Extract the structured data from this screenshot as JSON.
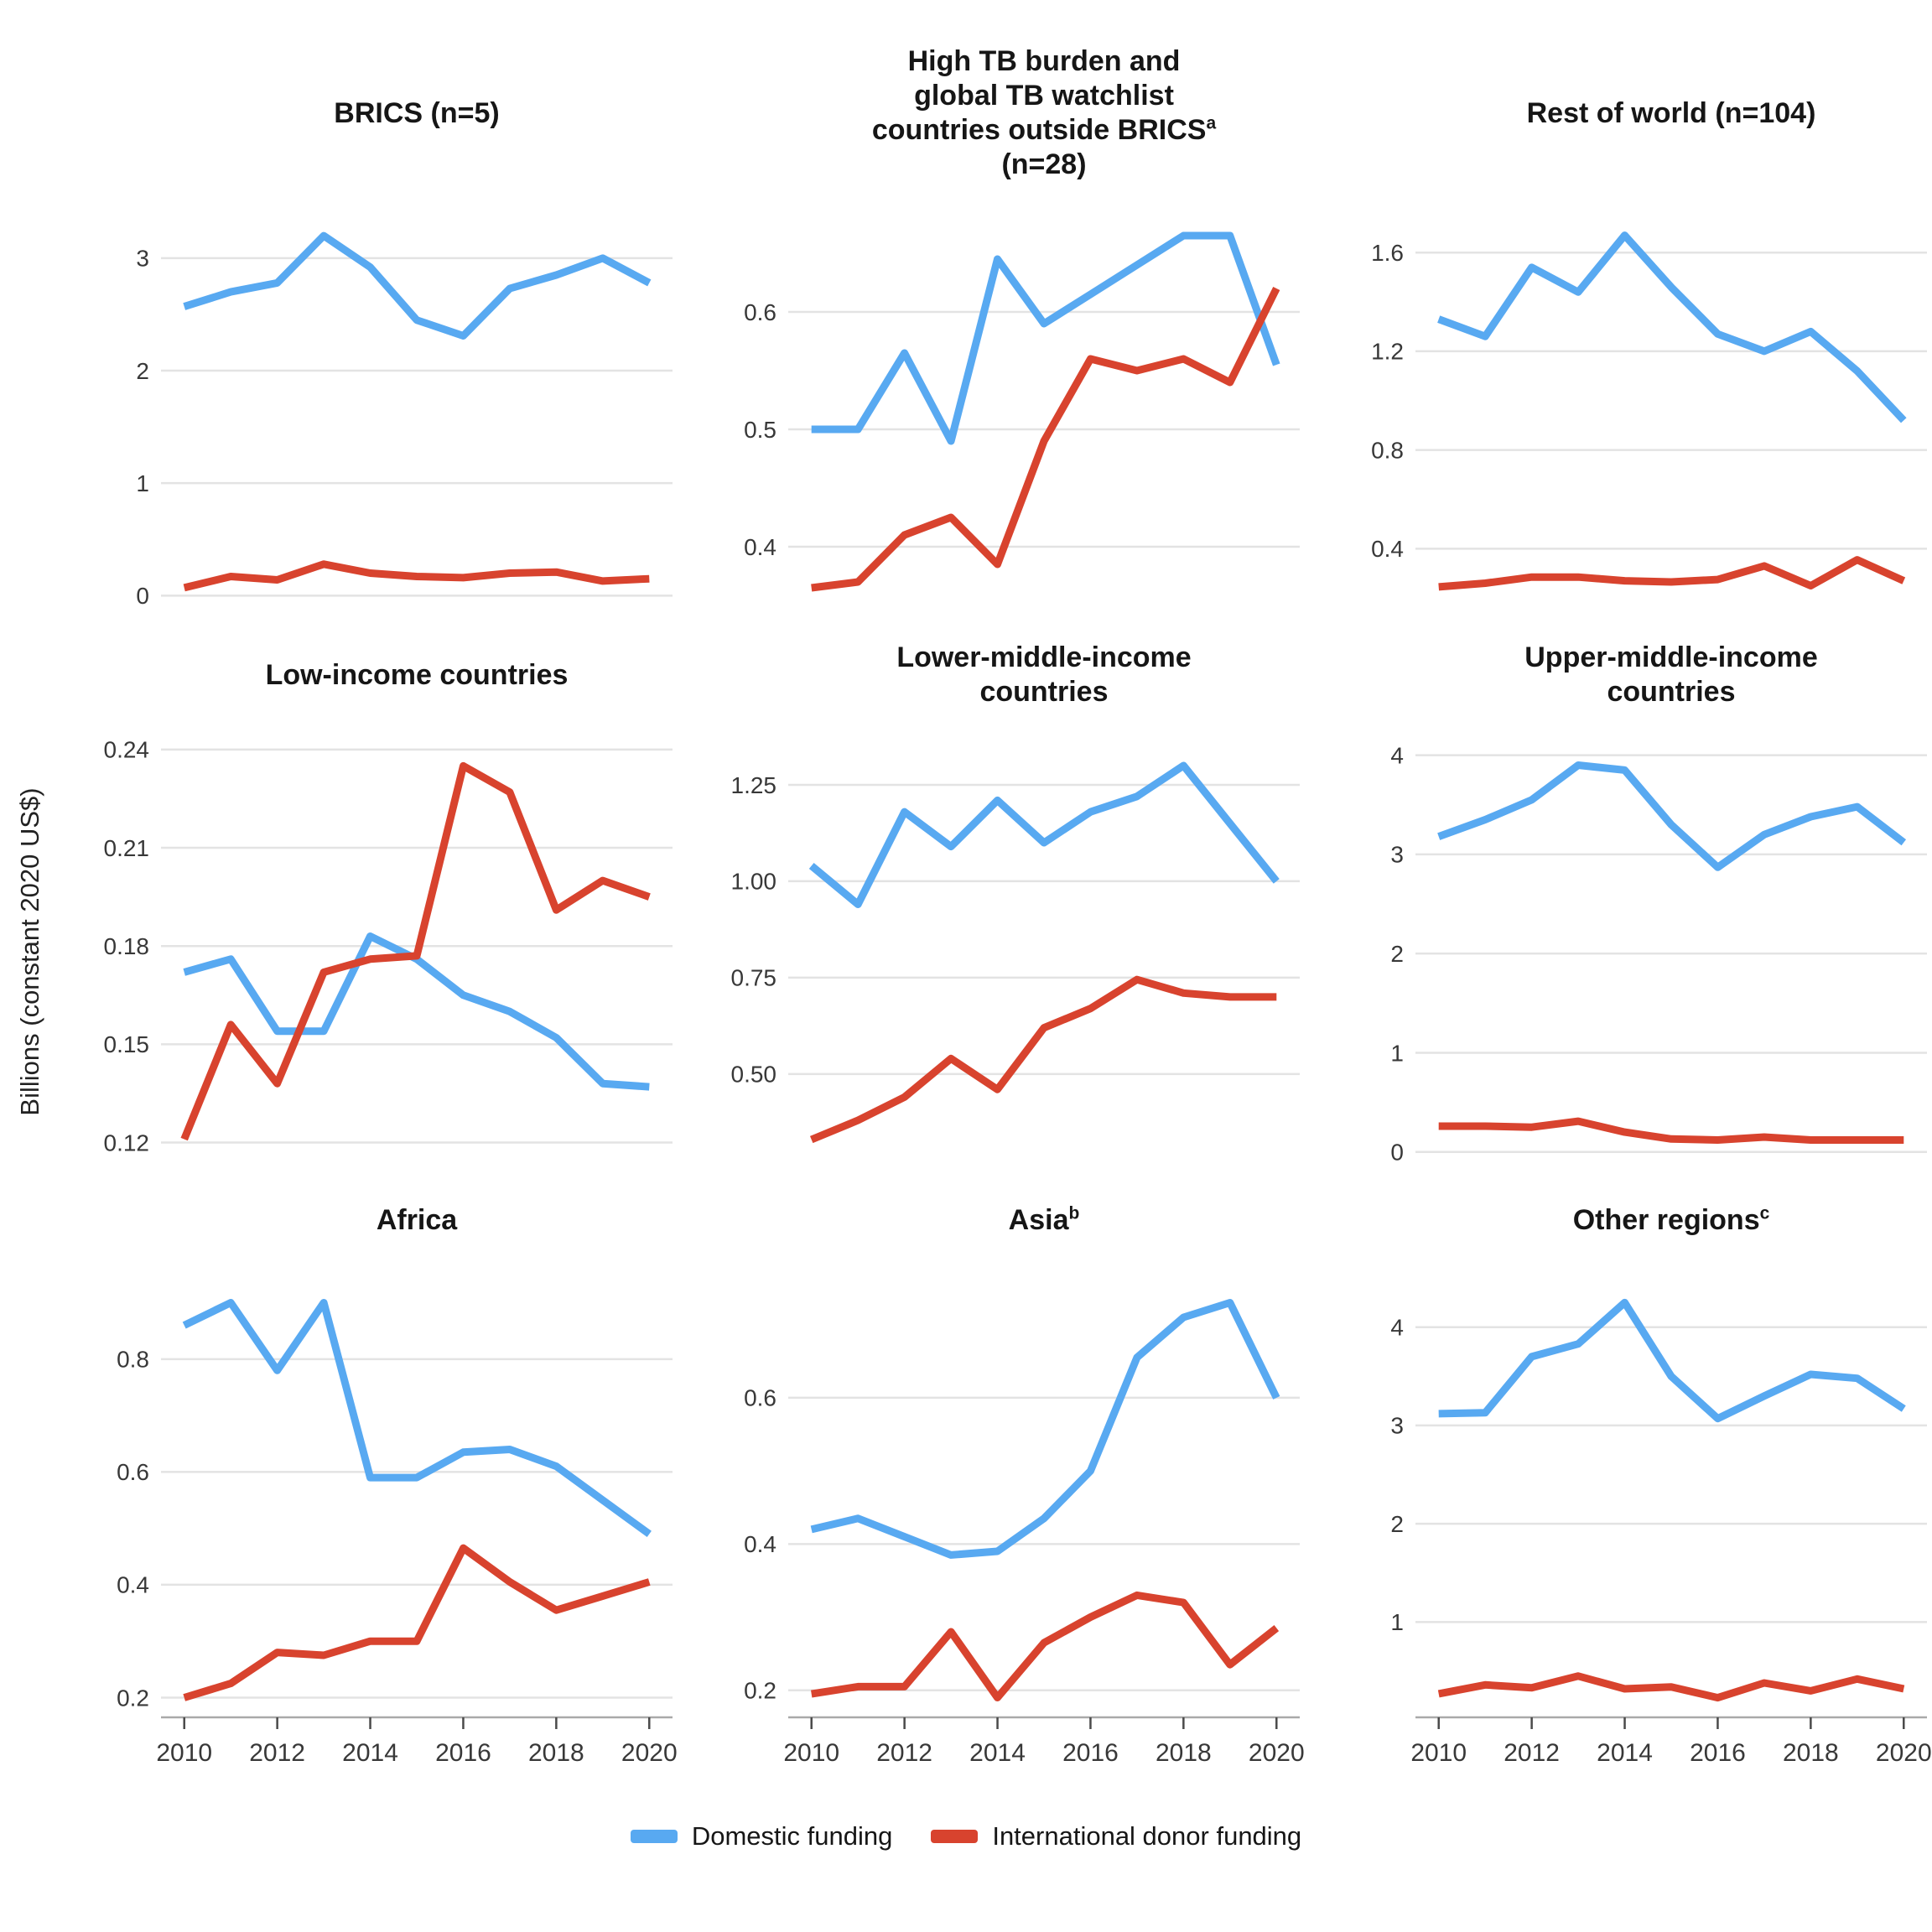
{
  "figure": {
    "ylabel": "Billions (constant 2020 US$)",
    "colors": {
      "domestic": "#58a9f1",
      "international": "#d8432e"
    },
    "legend": [
      {
        "key": "domestic",
        "label": "Domestic funding"
      },
      {
        "key": "international",
        "label": "International donor funding"
      }
    ]
  },
  "chart_data": {
    "type": "line",
    "x": [
      2010,
      2011,
      2012,
      2013,
      2014,
      2015,
      2016,
      2017,
      2018,
      2019,
      2020
    ],
    "xticks": [
      2010,
      2012,
      2014,
      2016,
      2018,
      2020
    ],
    "xtick_labels": [
      "2010",
      "2012",
      "2014",
      "2016",
      "2018",
      "2020"
    ],
    "grid": "horizontal-only",
    "legend_position": "bottom-center",
    "ylabel": "Billions (constant 2020 US$)",
    "panels": [
      {
        "id": "brics",
        "title_lines": [
          {
            "text": "BRICS (n=5)"
          }
        ],
        "ylim": [
          -0.087,
          3.357
        ],
        "yticks": [
          {
            "v": 0,
            "label": "0"
          },
          {
            "v": 1,
            "label": "1"
          },
          {
            "v": 2,
            "label": "2"
          },
          {
            "v": 3,
            "label": "3"
          }
        ],
        "series": [
          {
            "name": "Domestic funding",
            "key": "domestic",
            "values": [
              2.57,
              2.7,
              2.78,
              3.2,
              2.92,
              2.45,
              2.31,
              2.73,
              2.85,
              3.0,
              2.78
            ]
          },
          {
            "name": "International donor funding",
            "key": "international",
            "values": [
              0.07,
              0.17,
              0.14,
              0.28,
              0.2,
              0.17,
              0.16,
              0.2,
              0.21,
              0.13,
              0.15
            ]
          }
        ]
      },
      {
        "id": "high-tb-watchlist",
        "title_lines": [
          {
            "text": "High TB burden and"
          },
          {
            "text": "global TB watchlist"
          },
          {
            "text": "countries outside BRICS",
            "sup": "a"
          },
          {
            "text": "(n=28)"
          }
        ],
        "ylim": [
          0.35,
          0.68
        ],
        "yticks": [
          {
            "v": 0.4,
            "label": "0.4"
          },
          {
            "v": 0.5,
            "label": "0.5"
          },
          {
            "v": 0.6,
            "label": "0.6"
          }
        ],
        "series": [
          {
            "name": "Domestic funding",
            "key": "domestic",
            "values": [
              0.5,
              0.5,
              0.565,
              0.49,
              0.645,
              0.59,
              0.615,
              0.64,
              0.665,
              0.665,
              0.555
            ]
          },
          {
            "name": "International donor funding",
            "key": "international",
            "values": [
              0.365,
              0.37,
              0.41,
              0.425,
              0.385,
              0.49,
              0.56,
              0.55,
              0.56,
              0.54,
              0.62
            ]
          }
        ]
      },
      {
        "id": "rest-of-world",
        "title_lines": [
          {
            "text": "Rest of world (n=104)"
          }
        ],
        "ylim": [
          0.17,
          1.74
        ],
        "yticks": [
          {
            "v": 0.4,
            "label": "0.4"
          },
          {
            "v": 0.8,
            "label": "0.8"
          },
          {
            "v": 1.2,
            "label": "1.2"
          },
          {
            "v": 1.6,
            "label": "1.6"
          }
        ],
        "series": [
          {
            "name": "Domestic funding",
            "key": "domestic",
            "values": [
              1.33,
              1.26,
              1.54,
              1.44,
              1.67,
              1.46,
              1.27,
              1.2,
              1.28,
              1.12,
              0.92
            ]
          },
          {
            "name": "International donor funding",
            "key": "international",
            "values": [
              0.245,
              0.26,
              0.285,
              0.285,
              0.27,
              0.265,
              0.275,
              0.33,
              0.25,
              0.355,
              0.27
            ]
          }
        ]
      },
      {
        "id": "low-income",
        "title_lines": [
          {
            "text": "Low-income countries"
          }
        ],
        "ylim": [
          0.115,
          0.241
        ],
        "yticks": [
          {
            "v": 0.12,
            "label": "0.12"
          },
          {
            "v": 0.15,
            "label": "0.15"
          },
          {
            "v": 0.18,
            "label": "0.18"
          },
          {
            "v": 0.21,
            "label": "0.21"
          },
          {
            "v": 0.24,
            "label": "0.24"
          }
        ],
        "series": [
          {
            "name": "Domestic funding",
            "key": "domestic",
            "values": [
              0.172,
              0.176,
              0.154,
              0.154,
              0.183,
              0.176,
              0.165,
              0.16,
              0.152,
              0.138,
              0.137
            ]
          },
          {
            "name": "International donor funding",
            "key": "international",
            "values": [
              0.121,
              0.156,
              0.138,
              0.172,
              0.176,
              0.177,
              0.235,
              0.227,
              0.191,
              0.2,
              0.195
            ]
          }
        ]
      },
      {
        "id": "lower-middle-income",
        "title_lines": [
          {
            "text": "Lower-middle-income"
          },
          {
            "text": "countries"
          }
        ],
        "ylim": [
          0.28,
          1.35
        ],
        "yticks": [
          {
            "v": 0.5,
            "label": "0.50"
          },
          {
            "v": 0.75,
            "label": "0.75"
          },
          {
            "v": 1.0,
            "label": "1.00"
          },
          {
            "v": 1.25,
            "label": "1.25"
          }
        ],
        "series": [
          {
            "name": "Domestic funding",
            "key": "domestic",
            "values": [
              1.04,
              0.94,
              1.18,
              1.09,
              1.21,
              1.1,
              1.18,
              1.22,
              1.3,
              1.15,
              1.0
            ]
          },
          {
            "name": "International donor funding",
            "key": "international",
            "values": [
              0.33,
              0.38,
              0.44,
              0.54,
              0.46,
              0.62,
              0.67,
              0.745,
              0.71,
              0.7,
              0.7
            ]
          }
        ]
      },
      {
        "id": "upper-middle-income",
        "title_lines": [
          {
            "text": "Upper-middle-income"
          },
          {
            "text": "countries"
          }
        ],
        "ylim": [
          -0.07,
          4.09
        ],
        "yticks": [
          {
            "v": 0,
            "label": "0"
          },
          {
            "v": 1,
            "label": "1"
          },
          {
            "v": 2,
            "label": "2"
          },
          {
            "v": 3,
            "label": "3"
          },
          {
            "v": 4,
            "label": "4"
          }
        ],
        "series": [
          {
            "name": "Domestic funding",
            "key": "domestic",
            "values": [
              3.18,
              3.35,
              3.55,
              3.9,
              3.85,
              3.3,
              2.87,
              3.2,
              3.38,
              3.48,
              3.12
            ]
          },
          {
            "name": "International donor funding",
            "key": "international",
            "values": [
              0.26,
              0.26,
              0.25,
              0.31,
              0.2,
              0.13,
              0.12,
              0.15,
              0.12,
              0.12,
              0.12
            ]
          }
        ]
      },
      {
        "id": "africa",
        "title_lines": [
          {
            "text": "Africa"
          }
        ],
        "ylim": [
          0.165,
          0.935
        ],
        "yticks": [
          {
            "v": 0.2,
            "label": "0.2"
          },
          {
            "v": 0.4,
            "label": "0.4"
          },
          {
            "v": 0.6,
            "label": "0.6"
          },
          {
            "v": 0.8,
            "label": "0.8"
          }
        ],
        "series": [
          {
            "name": "Domestic funding",
            "key": "domestic",
            "values": [
              0.86,
              0.9,
              0.78,
              0.9,
              0.59,
              0.59,
              0.635,
              0.64,
              0.61,
              0.55,
              0.49
            ]
          },
          {
            "name": "International donor funding",
            "key": "international",
            "values": [
              0.2,
              0.225,
              0.28,
              0.275,
              0.3,
              0.3,
              0.465,
              0.405,
              0.355,
              0.38,
              0.405
            ]
          }
        ]
      },
      {
        "id": "asia",
        "title_lines": [
          {
            "text": "Asia",
            "sup": "b"
          }
        ],
        "ylim": [
          0.163,
          0.757
        ],
        "yticks": [
          {
            "v": 0.2,
            "label": "0.2"
          },
          {
            "v": 0.4,
            "label": "0.4"
          },
          {
            "v": 0.6,
            "label": "0.6"
          }
        ],
        "series": [
          {
            "name": "Domestic funding",
            "key": "domestic",
            "values": [
              0.42,
              0.435,
              0.41,
              0.385,
              0.39,
              0.435,
              0.5,
              0.655,
              0.71,
              0.73,
              0.6
            ]
          },
          {
            "name": "International donor funding",
            "key": "international",
            "values": [
              0.195,
              0.205,
              0.205,
              0.28,
              0.19,
              0.265,
              0.3,
              0.33,
              0.32,
              0.235,
              0.285
            ]
          }
        ]
      },
      {
        "id": "other-regions",
        "title_lines": [
          {
            "text": "Other regions",
            "sup": "c"
          }
        ],
        "ylim": [
          0.03,
          4.45
        ],
        "yticks": [
          {
            "v": 1,
            "label": "1"
          },
          {
            "v": 2,
            "label": "2"
          },
          {
            "v": 3,
            "label": "3"
          },
          {
            "v": 4,
            "label": "4"
          }
        ],
        "series": [
          {
            "name": "Domestic funding",
            "key": "domestic",
            "values": [
              3.12,
              3.13,
              3.7,
              3.83,
              4.25,
              3.5,
              3.07,
              3.3,
              3.52,
              3.48,
              3.17
            ]
          },
          {
            "name": "International donor funding",
            "key": "international",
            "values": [
              0.27,
              0.36,
              0.33,
              0.45,
              0.32,
              0.34,
              0.23,
              0.38,
              0.3,
              0.42,
              0.32
            ]
          }
        ]
      }
    ]
  }
}
